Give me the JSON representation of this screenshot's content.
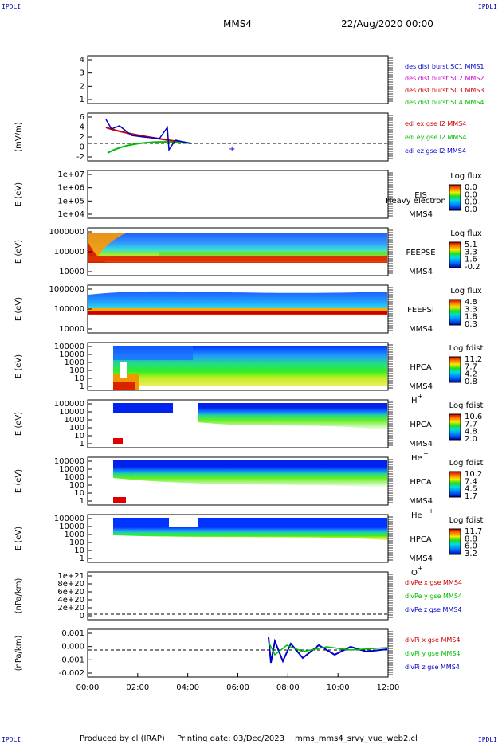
{
  "header": {
    "corner_label": "IPDLI",
    "spacecraft": "MMS4",
    "date_time": "22/Aug/2020 00:00"
  },
  "footer": {
    "produced_by": "Produced by cl (IRAP)",
    "printing_date": "Printing date: 03/Dec/2023",
    "filename": "mms_mms4_srvy_vue_web2.cl"
  },
  "colors": {
    "mms1": "#0000cc",
    "mms2": "#cc00cc",
    "mms3": "#cc0000",
    "mms4": "#00bb00",
    "ex": "#cc0000",
    "ey": "#00bb00",
    "ez": "#0000cc"
  },
  "chart_data": [
    {
      "id": "dist",
      "type": "line",
      "ylabel": "",
      "ytick_labels": [
        "4",
        "3",
        "2",
        "1"
      ],
      "legend": [
        {
          "text": "des dist burst SC1 MMS1",
          "color": "#0000cc"
        },
        {
          "text": "des dist burst SC2 MMS2",
          "color": "#cc00cc"
        },
        {
          "text": "des dist burst SC3 MMS3",
          "color": "#cc0000"
        },
        {
          "text": "des dist burst SC4 MMS4",
          "color": "#00bb00"
        }
      ]
    },
    {
      "id": "edi",
      "type": "line",
      "ylabel": "(mV/m)",
      "ytick_labels": [
        "6",
        "4",
        "2",
        "0",
        "-2"
      ],
      "legend": [
        {
          "text": "edi ex gse l2 MMS4",
          "color": "#cc0000"
        },
        {
          "text": "edi ey gse l2 MMS4",
          "color": "#00bb00"
        },
        {
          "text": "edi ez gse l2 MMS4",
          "color": "#0000cc"
        }
      ]
    },
    {
      "id": "eis",
      "type": "heatmap",
      "ylabel": "E (eV)",
      "ytick_labels": [
        "1e+07",
        "1e+06",
        "1e+05",
        "1e+04"
      ],
      "side_labels": [
        "EIS",
        "MMS4"
      ],
      "overlay_text": "Heavy electron to",
      "colorbar": {
        "title": "Log flux",
        "ticks": [
          "0.0",
          "0.0",
          "0.0",
          "0.0"
        ]
      }
    },
    {
      "id": "feepse",
      "type": "heatmap",
      "ylabel": "E (eV)",
      "ytick_labels": [
        "1000000",
        "100000",
        "10000"
      ],
      "side_labels": [
        "FEEPSE",
        "MMS4"
      ],
      "colorbar": {
        "title": "Log flux",
        "ticks": [
          "5.1",
          "3.3",
          "1.6",
          "-0.2"
        ]
      }
    },
    {
      "id": "feepsi",
      "type": "heatmap",
      "ylabel": "E (eV)",
      "ytick_labels": [
        "1000000",
        "100000",
        "10000"
      ],
      "side_labels": [
        "FEEPSI",
        "MMS4"
      ],
      "colorbar": {
        "title": "Log flux",
        "ticks": [
          "4.8",
          "3.3",
          "1.8",
          "0.3"
        ]
      }
    },
    {
      "id": "hpca_h",
      "type": "heatmap",
      "ylabel": "E (eV)",
      "ytick_labels": [
        "100000",
        "10000",
        "1000",
        "100",
        "10",
        "1"
      ],
      "side_labels": [
        "HPCA",
        "MMS4"
      ],
      "species": "H",
      "species_sup": "+",
      "colorbar": {
        "title": "Log fdist",
        "ticks": [
          "11.2",
          "7.7",
          "4.2",
          "0.8"
        ]
      }
    },
    {
      "id": "hpca_he",
      "type": "heatmap",
      "ylabel": "E (eV)",
      "ytick_labels": [
        "100000",
        "10000",
        "1000",
        "100",
        "10",
        "1"
      ],
      "side_labels": [
        "HPCA",
        "MMS4"
      ],
      "species": "He",
      "species_sup": "+",
      "colorbar": {
        "title": "Log fdist",
        "ticks": [
          "10.6",
          "7.7",
          "4.8",
          "2.0"
        ]
      }
    },
    {
      "id": "hpca_hepp",
      "type": "heatmap",
      "ylabel": "E (eV)",
      "ytick_labels": [
        "100000",
        "10000",
        "1000",
        "100",
        "10",
        "1"
      ],
      "side_labels": [
        "HPCA",
        "MMS4"
      ],
      "species": "He",
      "species_sup": "++",
      "colorbar": {
        "title": "Log fdist",
        "ticks": [
          "10.2",
          "7.4",
          "4.5",
          "1.7"
        ]
      }
    },
    {
      "id": "hpca_o",
      "type": "heatmap",
      "ylabel": "E (eV)",
      "ytick_labels": [
        "100000",
        "10000",
        "1000",
        "100",
        "10",
        "1"
      ],
      "side_labels": [
        "HPCA",
        "MMS4"
      ],
      "species": "O",
      "species_sup": "+",
      "colorbar": {
        "title": "Log fdist",
        "ticks": [
          "11.7",
          "8.8",
          "6.0",
          "3.2"
        ]
      }
    },
    {
      "id": "divpe",
      "type": "line",
      "ylabel": "(nPa/km)",
      "ytick_labels": [
        "1e+21",
        "8e+20",
        "6e+20",
        "4e+20",
        "2e+20",
        "0"
      ],
      "legend": [
        {
          "text": "divPe x gse MMS4",
          "color": "#cc0000"
        },
        {
          "text": "divPe y gse MMS4",
          "color": "#00bb00"
        },
        {
          "text": "divPe z gse MMS4",
          "color": "#0000cc"
        }
      ]
    },
    {
      "id": "divpi",
      "type": "line",
      "ylabel": "(nPa/km)",
      "ytick_labels": [
        "0.001",
        "0.000",
        "-0.001",
        "-0.002"
      ],
      "xtick_labels": [
        "00:00",
        "02:00",
        "04:00",
        "06:00",
        "08:00",
        "10:00",
        "12:00"
      ],
      "legend": [
        {
          "text": "divPi x gse MMS4",
          "color": "#cc0000"
        },
        {
          "text": "divPi y gse MMS4",
          "color": "#00bb00"
        },
        {
          "text": "divPi z gse MMS4",
          "color": "#0000cc"
        }
      ]
    }
  ]
}
